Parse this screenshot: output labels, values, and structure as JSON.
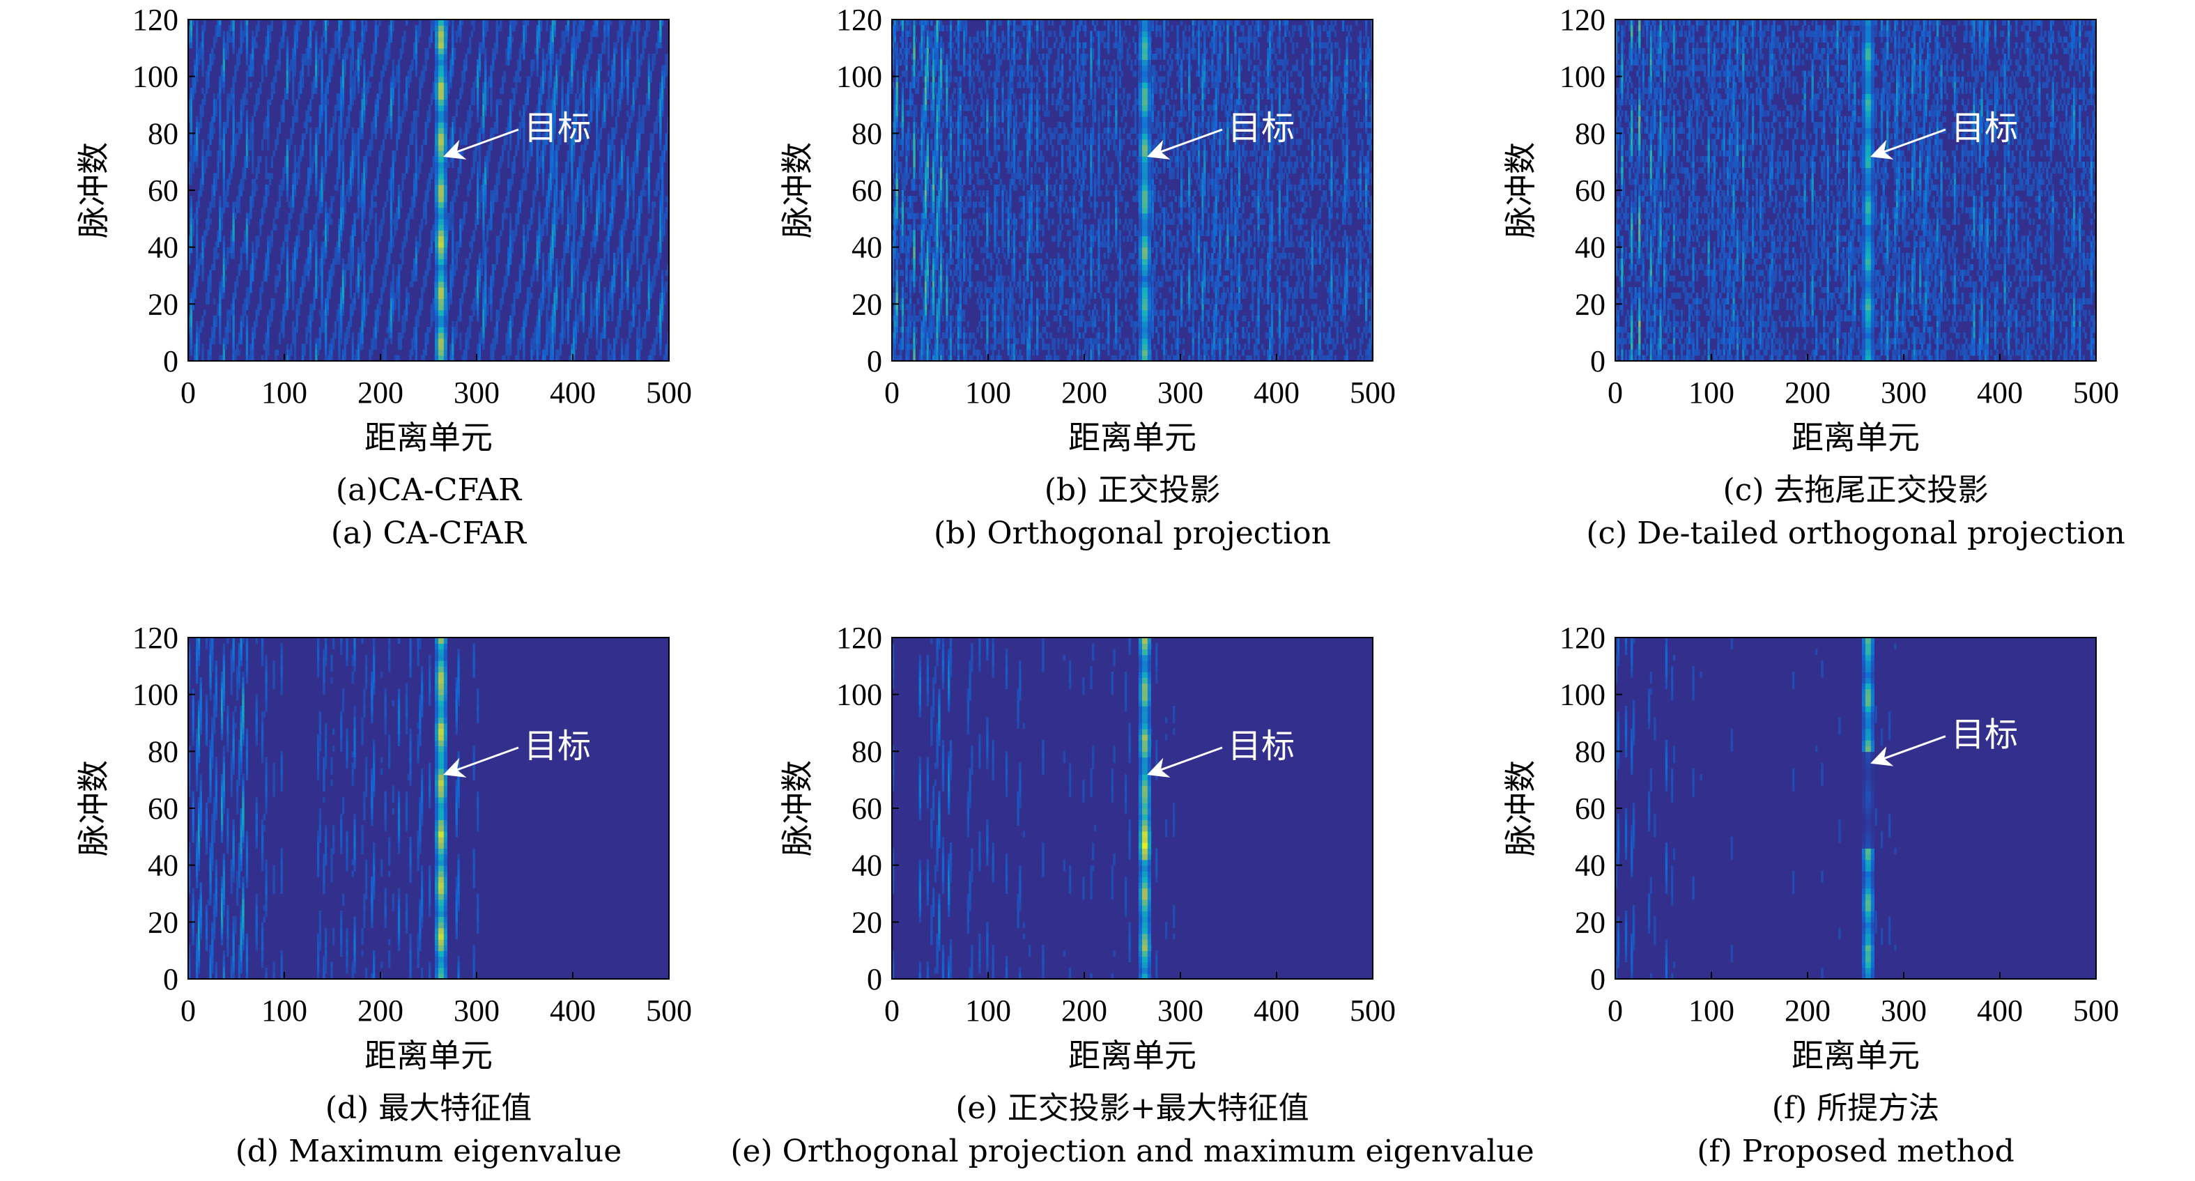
{
  "chart_data": [
    {
      "type": "heatmap",
      "xlabel": "距离单元",
      "ylabel": "脉冲数",
      "xlim": [
        0,
        500
      ],
      "ylim": [
        0,
        120
      ],
      "xticks": [
        "0",
        "100",
        "200",
        "300",
        "400",
        "500"
      ],
      "yticks": [
        "0",
        "20",
        "40",
        "60",
        "80",
        "100",
        "120"
      ],
      "target_range_cell": 263,
      "annotation": {
        "text": "目标",
        "x": 263,
        "y": 72
      },
      "caption_cn": "(a)CA-CFAR",
      "caption_en": "(a) CA-CFAR",
      "style": {
        "noise": 0.34,
        "streak": 0.35,
        "target": 0.78,
        "pattern": "ripple"
      }
    },
    {
      "type": "heatmap",
      "xlabel": "距离单元",
      "ylabel": "脉冲数",
      "xlim": [
        0,
        500
      ],
      "ylim": [
        0,
        120
      ],
      "xticks": [
        "0",
        "100",
        "200",
        "300",
        "400",
        "500"
      ],
      "yticks": [
        "0",
        "20",
        "40",
        "60",
        "80",
        "100",
        "120"
      ],
      "target_range_cell": 263,
      "annotation": {
        "text": "目标",
        "x": 263,
        "y": 72
      },
      "caption_cn": "(b) 正交投影",
      "caption_en": "(b) Orthogonal projection",
      "style": {
        "noise": 0.26,
        "streak": 0.3,
        "target": 0.62,
        "pattern": "grain"
      }
    },
    {
      "type": "heatmap",
      "xlabel": "距离单元",
      "ylabel": "脉冲数",
      "xlim": [
        0,
        500
      ],
      "ylim": [
        0,
        120
      ],
      "xticks": [
        "0",
        "100",
        "200",
        "300",
        "400",
        "500"
      ],
      "yticks": [
        "0",
        "20",
        "40",
        "60",
        "80",
        "100",
        "120"
      ],
      "target_range_cell": 263,
      "annotation": {
        "text": "目标",
        "x": 263,
        "y": 72
      },
      "caption_cn": "(c) 去拖尾正交投影",
      "caption_en": "(c) De-tailed orthogonal projection",
      "style": {
        "noise": 0.28,
        "streak": 0.32,
        "target": 0.55,
        "pattern": "grain"
      }
    },
    {
      "type": "heatmap",
      "xlabel": "距离单元",
      "ylabel": "脉冲数",
      "xlim": [
        0,
        500
      ],
      "ylim": [
        0,
        120
      ],
      "xticks": [
        "0",
        "100",
        "200",
        "300",
        "400",
        "500"
      ],
      "yticks": [
        "0",
        "20",
        "40",
        "60",
        "80",
        "100",
        "120"
      ],
      "target_range_cell": 263,
      "annotation": {
        "text": "目标",
        "x": 263,
        "y": 72
      },
      "caption_cn": "(d) 最大特征值",
      "caption_en": "(d) Maximum eigenvalue",
      "style": {
        "noise": 0.14,
        "streak": 0.28,
        "target": 0.82,
        "pattern": "smooth"
      }
    },
    {
      "type": "heatmap",
      "xlabel": "距离单元",
      "ylabel": "脉冲数",
      "xlim": [
        0,
        500
      ],
      "ylim": [
        0,
        120
      ],
      "xticks": [
        "0",
        "100",
        "200",
        "300",
        "400",
        "500"
      ],
      "yticks": [
        "0",
        "20",
        "40",
        "60",
        "80",
        "100",
        "120"
      ],
      "target_range_cell": 263,
      "annotation": {
        "text": "目标",
        "x": 263,
        "y": 72
      },
      "caption_cn": "(e) 正交投影+最大特征值",
      "caption_en": "(e) Orthogonal projection and maximum eigenvalue",
      "style": {
        "noise": 0.1,
        "streak": 0.2,
        "target": 0.72,
        "pattern": "smooth"
      }
    },
    {
      "type": "heatmap",
      "xlabel": "距离单元",
      "ylabel": "脉冲数",
      "xlim": [
        0,
        500
      ],
      "ylim": [
        0,
        120
      ],
      "xticks": [
        "0",
        "100",
        "200",
        "300",
        "400",
        "500"
      ],
      "yticks": [
        "0",
        "20",
        "40",
        "60",
        "80",
        "100",
        "120"
      ],
      "target_range_cell": 263,
      "annotation": {
        "text": "目标",
        "x": 263,
        "y": 76
      },
      "caption_cn": "(f) 所提方法",
      "caption_en": "(f) Proposed method",
      "style": {
        "noise": 0.06,
        "streak": 0.14,
        "target": 0.6,
        "pattern": "smooth"
      }
    }
  ]
}
